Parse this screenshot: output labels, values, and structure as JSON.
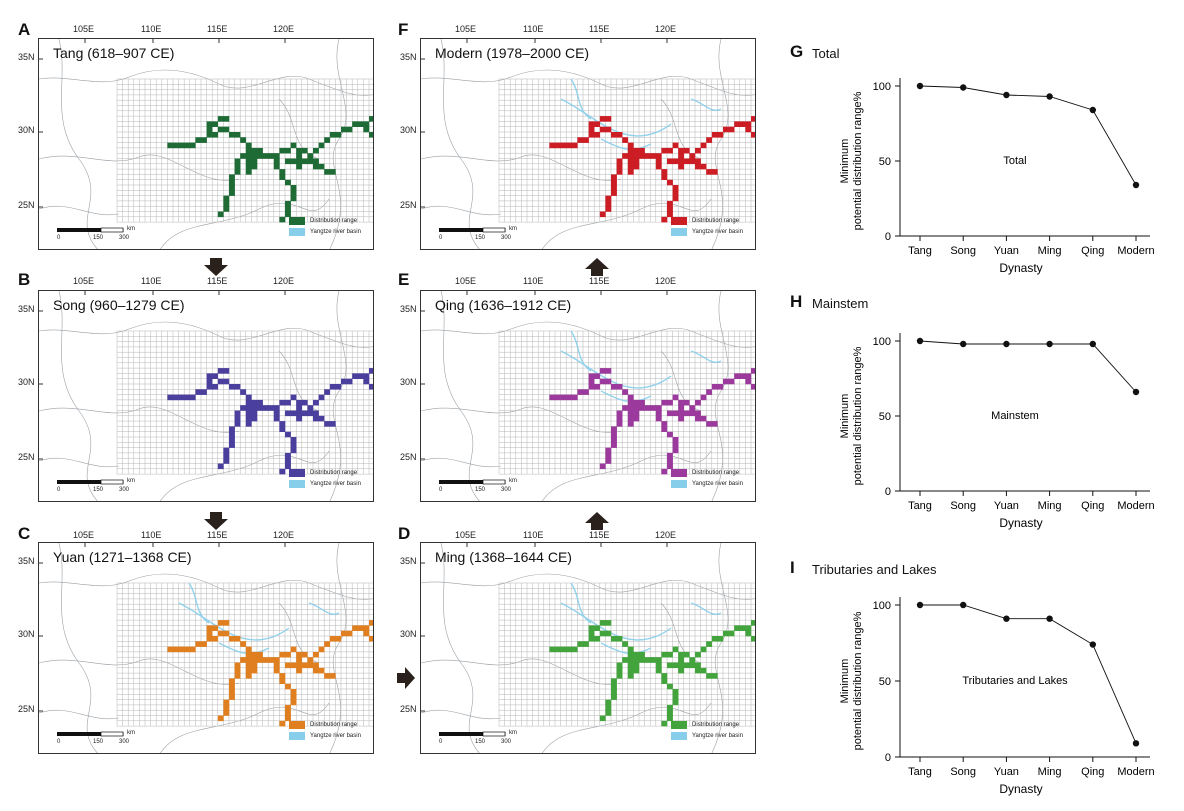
{
  "maps": [
    {
      "letter": "A",
      "title": "Tang (618–907 CE)",
      "color": "#1e6b35",
      "left": 38,
      "top": 38,
      "letterLeft": 18,
      "letterTop": 20,
      "lonTop": 24,
      "yangtze": false
    },
    {
      "letter": "B",
      "title": "Song (960–1279 CE)",
      "color": "#4b3f9e",
      "left": 38,
      "top": 290,
      "letterLeft": 18,
      "letterTop": 270,
      "lonTop": 276,
      "yangtze": false
    },
    {
      "letter": "C",
      "title": "Yuan (1271–1368 CE)",
      "color": "#e07f1f",
      "left": 38,
      "top": 542,
      "letterLeft": 18,
      "letterTop": 524,
      "lonTop": 530,
      "yangtze": true
    },
    {
      "letter": "F",
      "title": "Modern (1978–2000 CE)",
      "color": "#cc1d25",
      "left": 420,
      "top": 38,
      "letterLeft": 398,
      "letterTop": 20,
      "lonTop": 24,
      "yangtze": true
    },
    {
      "letter": "E",
      "title": "Qing (1636–1912 CE)",
      "color": "#9b3a9c",
      "left": 420,
      "top": 290,
      "letterLeft": 398,
      "letterTop": 270,
      "lonTop": 276,
      "yangtze": true
    },
    {
      "letter": "D",
      "title": "Ming (1368–1644 CE)",
      "color": "#43a43d",
      "left": 420,
      "top": 542,
      "letterLeft": 398,
      "letterTop": 524,
      "lonTop": 530,
      "yangtze": true
    }
  ],
  "map_labels": {
    "lon": [
      "105E",
      "110E",
      "115E",
      "120E"
    ],
    "lat": [
      "35N",
      "30N",
      "25N"
    ],
    "legend_distribution": "Distribution range",
    "legend_yangtze": "Yangtze river basin",
    "scale_ticks": [
      "0",
      "150",
      "300"
    ],
    "scale_unit": "km",
    "yangtze_color": "#87ceeb"
  },
  "chart_data": [
    {
      "letter": "G",
      "title": "Total",
      "type": "line",
      "categories": [
        "Tang",
        "Song",
        "Yuan",
        "Ming",
        "Qing",
        "Modern"
      ],
      "values": [
        100,
        99,
        94,
        93,
        84,
        34
      ],
      "inner_label": "Total",
      "xlabel": "Dynasty",
      "ylabel_line1": "Minimum",
      "ylabel_line2": "potential distribution range%",
      "yticks": [
        "100",
        "50",
        "0"
      ],
      "ylim": [
        0,
        100
      ]
    },
    {
      "letter": "H",
      "title": "Mainstem",
      "type": "line",
      "categories": [
        "Tang",
        "Song",
        "Yuan",
        "Ming",
        "Qing",
        "Modern"
      ],
      "values": [
        100,
        98,
        98,
        98,
        98,
        66
      ],
      "inner_label": "Mainstem",
      "xlabel": "Dynasty",
      "ylabel_line1": "Minimum",
      "ylabel_line2": "potential distribution range%",
      "yticks": [
        "100",
        "50",
        "0"
      ],
      "ylim": [
        0,
        100
      ]
    },
    {
      "letter": "I",
      "title": "Tributaries and Lakes",
      "type": "line",
      "categories": [
        "Tang",
        "Song",
        "Yuan",
        "Ming",
        "Qing",
        "Modern"
      ],
      "values": [
        100,
        100,
        91,
        91,
        74,
        9
      ],
      "inner_label": "Tributaries and Lakes",
      "xlabel": "Dynasty",
      "ylabel_line1": "Minimum",
      "ylabel_line2": "potential distribution range%",
      "yticks": [
        "100",
        "50",
        "0"
      ],
      "ylim": [
        0,
        100
      ]
    }
  ]
}
